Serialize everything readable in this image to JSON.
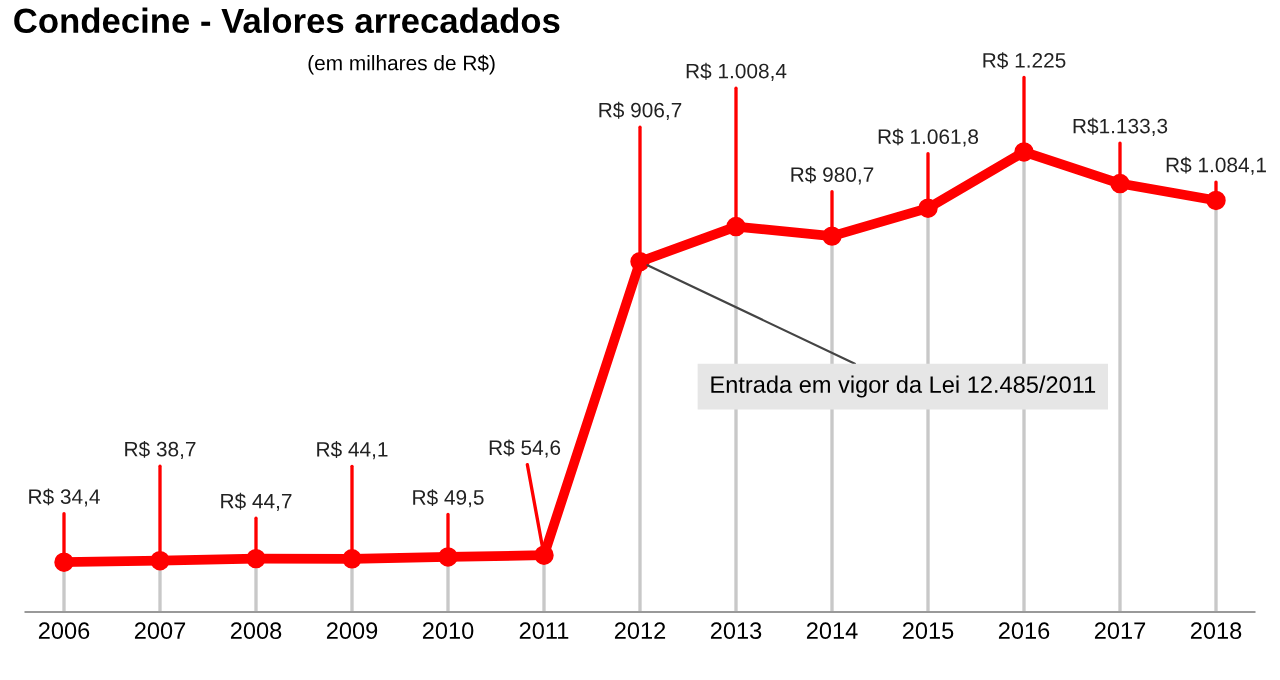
{
  "chart_data": {
    "type": "line",
    "title": "Condecine - Valores arrecadados",
    "subtitle": "(em milhares de R$)",
    "categories": [
      "2006",
      "2007",
      "2008",
      "2009",
      "2010",
      "2011",
      "2012",
      "2013",
      "2014",
      "2015",
      "2016",
      "2017",
      "2018"
    ],
    "values": [
      34.4,
      38.7,
      44.7,
      44.1,
      49.5,
      54.6,
      906.7,
      1008.4,
      980.7,
      1061.8,
      1225,
      1133.3,
      1084.1
    ],
    "value_labels": [
      "R$ 34,4",
      "R$ 38,7",
      "R$ 44,7",
      "R$ 44,1",
      "R$ 49,5",
      "R$ 54,6",
      "R$ 906,7",
      "R$ 1.008,4",
      "R$ 980,7",
      "R$ 1.061,8",
      "R$ 1.225",
      "R$1.133,3",
      "R$ 1.084,1"
    ],
    "color": "#ff0000",
    "marker": "circle",
    "grid": "x",
    "legend": false,
    "annotations": [
      {
        "text": "Entrada em vigor da Lei 12.485/2011",
        "x": "2012",
        "y": 906.7
      }
    ]
  }
}
